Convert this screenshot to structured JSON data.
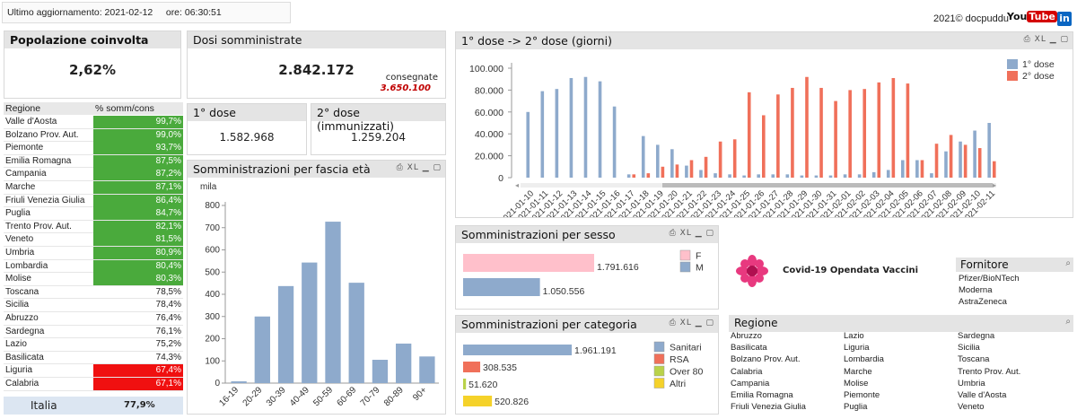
{
  "header": {
    "update_label": "Ultimo aggiornamento: 2021-02-12     ore: 06:30:51",
    "credit": "2021© docpuddu",
    "youtube_label": "YouTube",
    "linkedin_label": "in"
  },
  "kpi_popolazione": {
    "title": "Popolazione coinvolta",
    "value": "2,62%"
  },
  "kpi_dosi": {
    "title": "Dosi somministrate",
    "value": "2.842.172",
    "consegnate_label": "consegnate",
    "consegnate_value": "3.650.100"
  },
  "kpi_dose1": {
    "title": "1° dose",
    "value": "1.582.968"
  },
  "kpi_dose2": {
    "title": "2° dose (immunizzati)",
    "value": "1.259.204"
  },
  "regions_table": {
    "col_region": "Regione",
    "col_pct": "% somm/cons",
    "rows": [
      {
        "region": "Valle d'Aosta",
        "value": "99,7%",
        "color": "#4aaa3c"
      },
      {
        "region": "Bolzano Prov. Aut.",
        "value": "99,0%",
        "color": "#4aaa3c"
      },
      {
        "region": "Piemonte",
        "value": "93,7%",
        "color": "#4aaa3c"
      },
      {
        "region": "Emilia Romagna",
        "value": "87,5%",
        "color": "#4aaa3c"
      },
      {
        "region": "Campania",
        "value": "87,2%",
        "color": "#4aaa3c"
      },
      {
        "region": "Marche",
        "value": "87,1%",
        "color": "#4aaa3c"
      },
      {
        "region": "Friuli Venezia Giulia",
        "value": "86,4%",
        "color": "#4aaa3c"
      },
      {
        "region": "Puglia",
        "value": "84,7%",
        "color": "#4aaa3c"
      },
      {
        "region": "Trento Prov. Aut.",
        "value": "82,1%",
        "color": "#4aaa3c"
      },
      {
        "region": "Veneto",
        "value": "81,5%",
        "color": "#4aaa3c"
      },
      {
        "region": "Umbria",
        "value": "80,9%",
        "color": "#4aaa3c"
      },
      {
        "region": "Lombardia",
        "value": "80,4%",
        "color": "#4aaa3c"
      },
      {
        "region": "Molise",
        "value": "80,3%",
        "color": "#4aaa3c"
      },
      {
        "region": "Toscana",
        "value": "78,5%",
        "color": ""
      },
      {
        "region": "Sicilia",
        "value": "78,4%",
        "color": ""
      },
      {
        "region": "Abruzzo",
        "value": "76,4%",
        "color": ""
      },
      {
        "region": "Sardegna",
        "value": "76,1%",
        "color": ""
      },
      {
        "region": "Lazio",
        "value": "75,2%",
        "color": ""
      },
      {
        "region": "Basilicata",
        "value": "74,3%",
        "color": ""
      },
      {
        "region": "Liguria",
        "value": "67,4%",
        "color": "#f01010"
      },
      {
        "region": "Calabria",
        "value": "67,1%",
        "color": "#f01010"
      }
    ],
    "total_label": "Italia",
    "total_value": "77,9%"
  },
  "chart_data": [
    {
      "type": "bar",
      "title": "Somministrazioni per fascia età",
      "ylabel": "mila",
      "categories": [
        "16-19",
        "20-29",
        "30-39",
        "40-49",
        "50-59",
        "60-69",
        "70-79",
        "80-89",
        "90+"
      ],
      "values": [
        8,
        300,
        437,
        543,
        727,
        452,
        105,
        178,
        120
      ],
      "ylim": [
        0,
        800
      ],
      "yticks": [
        "0",
        "100",
        "200",
        "300",
        "400",
        "500",
        "600",
        "700",
        "800"
      ],
      "color": "#8eaacc"
    },
    {
      "type": "bar",
      "title": "1° dose -> 2° dose (giorni)",
      "categories": [
        "2021-01-10",
        "2021-01-11",
        "2021-01-12",
        "2021-01-13",
        "2021-01-14",
        "2021-01-15",
        "2021-01-16",
        "2021-01-17",
        "2021-01-18",
        "2021-01-19",
        "2021-01-20",
        "2021-01-21",
        "2021-01-22",
        "2021-01-23",
        "2021-01-24",
        "2021-01-25",
        "2021-01-26",
        "2021-01-27",
        "2021-01-28",
        "2021-01-29",
        "2021-01-30",
        "2021-01-31",
        "2021-02-01",
        "2021-02-02",
        "2021-02-03",
        "2021-02-04",
        "2021-02-05",
        "2021-02-06",
        "2021-02-07",
        "2021-02-08",
        "2021-02-09",
        "2021-02-10",
        "2021-02-11"
      ],
      "series": [
        {
          "name": "1° dose",
          "color": "#8eaacc",
          "values": [
            60000,
            79000,
            81000,
            91000,
            92000,
            88000,
            65000,
            3000,
            38000,
            30000,
            26000,
            11000,
            7000,
            4000,
            3000,
            2000,
            3000,
            3000,
            3000,
            2000,
            2000,
            2000,
            3000,
            3000,
            5000,
            7000,
            16000,
            16000,
            4000,
            24000,
            33000,
            43000,
            50000
          ]
        },
        {
          "name": "2° dose",
          "color": "#f0705a",
          "values": [
            0,
            0,
            0,
            0,
            0,
            0,
            0,
            3000,
            4000,
            10000,
            12000,
            16000,
            19000,
            33000,
            35000,
            78000,
            57000,
            76000,
            82000,
            92000,
            82000,
            70000,
            80000,
            81000,
            87000,
            91000,
            86000,
            16000,
            31000,
            39000,
            30000,
            27000,
            15000
          ]
        }
      ],
      "ylim": [
        0,
        100000
      ],
      "yticks": [
        "0",
        "20.000",
        "40.000",
        "60.000",
        "80.000",
        "100.000"
      ]
    },
    {
      "type": "bar",
      "title": "Somministrazioni per sesso",
      "categories": [
        "F",
        "M"
      ],
      "values": [
        1791616,
        1050556
      ],
      "value_labels": [
        "1.791.616",
        "1.050.556"
      ],
      "colors": [
        "#ffc0cb",
        "#8eaacc"
      ]
    },
    {
      "type": "bar",
      "title": "Somministrazioni per categoria",
      "categories": [
        "Sanitari",
        "RSA",
        "Over 80",
        "Altri"
      ],
      "values": [
        1961191,
        308535,
        51620,
        520826
      ],
      "value_labels": [
        "1.961.191",
        "308.535",
        "51.620",
        "520.826"
      ],
      "colors": [
        "#8eaacc",
        "#f0705a",
        "#b9d24a",
        "#f5d22a"
      ]
    }
  ],
  "brand": {
    "title": "Covid-19 Opendata Vaccini"
  },
  "fornitore": {
    "title": "Fornitore",
    "items": [
      "Pfizer/BioNTech",
      "Moderna",
      "AstraZeneca"
    ]
  },
  "regione_list": {
    "title": "Regione",
    "col1": [
      "Abruzzo",
      "Basilicata",
      "Bolzano Prov. Aut.",
      "Calabria",
      "Campania",
      "Emilia Romagna",
      "Friuli Venezia Giulia"
    ],
    "col2": [
      "Lazio",
      "Liguria",
      "Lombardia",
      "Marche",
      "Molise",
      "Piemonte",
      "Puglia"
    ],
    "col3": [
      "Sardegna",
      "Sicilia",
      "Toscana",
      "Trento Prov. Aut.",
      "Umbria",
      "Valle d'Aosta",
      "Veneto"
    ]
  },
  "tools": {
    "xl": "XL"
  }
}
